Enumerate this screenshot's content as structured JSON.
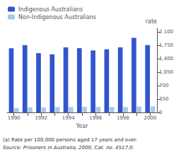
{
  "chart_data": {
    "type": "bar",
    "categories": [
      "1990",
      null,
      "1992",
      null,
      "1994",
      null,
      "1996",
      null,
      "1998",
      null,
      "2000"
    ],
    "series": [
      {
        "name": "Indigenous Australians",
        "color": "#3355cc",
        "values": [
          1680,
          1760,
          1550,
          1520,
          1700,
          1680,
          1620,
          1650,
          1700,
          1950,
          1760
        ]
      },
      {
        "name": "Non-Indigenous Australians",
        "color": "#aac8e8",
        "values": [
          110,
          130,
          130,
          140,
          140,
          145,
          145,
          140,
          140,
          155,
          155
        ]
      }
    ],
    "xlabel": "Year",
    "ylabel": "rate",
    "ylim": [
      0,
      2200
    ],
    "yticks": [
      0,
      350,
      700,
      1050,
      1400,
      1750,
      2100
    ],
    "grid": false,
    "legend": "upper left",
    "annotations": [
      "(a) Rate per 100,000 persons aged 17 years and over.",
      "Source: Prisoners in Australia, 2000, Cat. no. 4517.0."
    ]
  }
}
